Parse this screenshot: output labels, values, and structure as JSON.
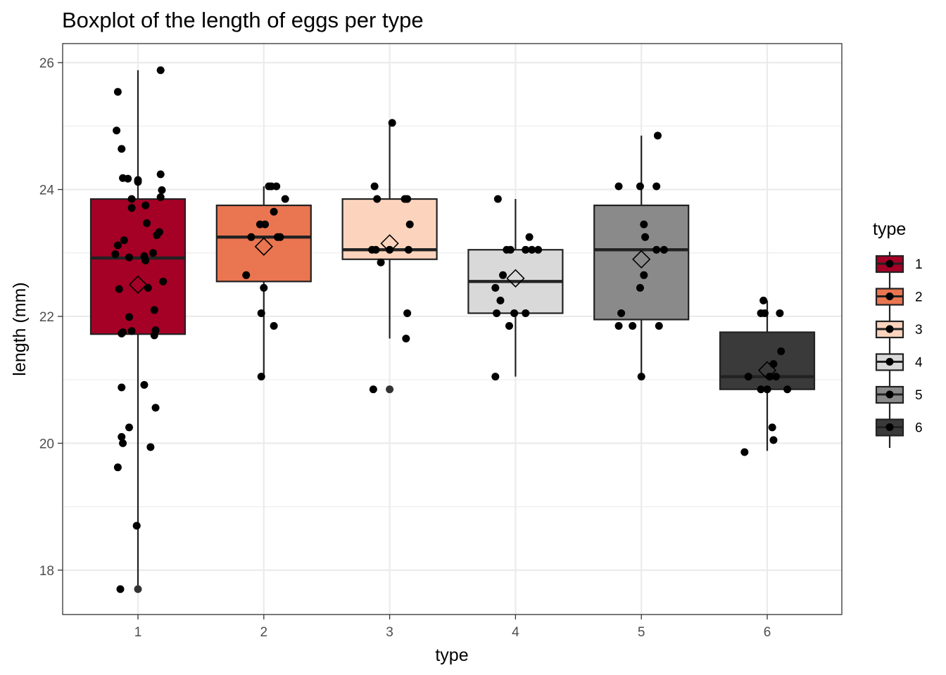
{
  "chart_data": {
    "type": "boxplot",
    "title": "Boxplot of the length of eggs per type",
    "xlabel": "type",
    "ylabel": "length (mm)",
    "ylim": [
      17.3,
      26.3
    ],
    "yticks": [
      18,
      20,
      22,
      24,
      26
    ],
    "grid": true,
    "legend": {
      "title": "type",
      "placement": "right",
      "labels": [
        "1",
        "2",
        "3",
        "4",
        "5",
        "6"
      ]
    },
    "categories": [
      "1",
      "2",
      "3",
      "4",
      "5",
      "6"
    ],
    "boxes": [
      {
        "category": "1",
        "color": "#a50026",
        "whisker_low": 17.7,
        "q1": 21.72,
        "median": 22.92,
        "q3": 23.85,
        "whisker_high": 25.88,
        "mean": 22.5
      },
      {
        "category": "2",
        "color": "#ea7651",
        "whisker_low": 21.05,
        "q1": 22.55,
        "median": 23.25,
        "q3": 23.75,
        "whisker_high": 24.05,
        "mean": 23.1
      },
      {
        "category": "3",
        "color": "#fcd4bd",
        "whisker_low": 21.65,
        "q1": 22.9,
        "median": 23.05,
        "q3": 23.85,
        "whisker_high": 25.05,
        "mean": 23.15
      },
      {
        "category": "4",
        "color": "#d9d9d9",
        "whisker_low": 21.05,
        "q1": 22.05,
        "median": 22.55,
        "q3": 23.05,
        "whisker_high": 23.85,
        "mean": 22.6
      },
      {
        "category": "5",
        "color": "#8a8a8a",
        "whisker_low": 21.05,
        "q1": 21.95,
        "median": 23.05,
        "q3": 23.75,
        "whisker_high": 24.85,
        "mean": 22.9
      },
      {
        "category": "6",
        "color": "#3a3a3a",
        "whisker_low": 19.88,
        "q1": 20.85,
        "median": 21.05,
        "q3": 21.75,
        "whisker_high": 22.25,
        "mean": 21.15
      }
    ],
    "outliers": [
      {
        "category": "1",
        "y": 17.7
      },
      {
        "category": "3",
        "y": 20.85
      }
    ],
    "points": [
      {
        "x": 0.86,
        "y": 17.7
      },
      {
        "x": 0.99,
        "y": 18.7
      },
      {
        "x": 0.84,
        "y": 19.62
      },
      {
        "x": 0.88,
        "y": 20.0
      },
      {
        "x": 0.87,
        "y": 20.1
      },
      {
        "x": 0.93,
        "y": 20.25
      },
      {
        "x": 1.1,
        "y": 19.94
      },
      {
        "x": 1.14,
        "y": 20.56
      },
      {
        "x": 1.05,
        "y": 20.92
      },
      {
        "x": 0.87,
        "y": 20.88
      },
      {
        "x": 0.87,
        "y": 21.73
      },
      {
        "x": 0.88,
        "y": 21.75
      },
      {
        "x": 0.95,
        "y": 21.77
      },
      {
        "x": 1.13,
        "y": 21.7
      },
      {
        "x": 1.14,
        "y": 21.78
      },
      {
        "x": 0.93,
        "y": 21.99
      },
      {
        "x": 1.13,
        "y": 22.1
      },
      {
        "x": 0.85,
        "y": 22.43
      },
      {
        "x": 1.08,
        "y": 22.45
      },
      {
        "x": 1.2,
        "y": 22.55
      },
      {
        "x": 1.06,
        "y": 22.88
      },
      {
        "x": 0.93,
        "y": 22.93
      },
      {
        "x": 1.05,
        "y": 22.95
      },
      {
        "x": 1.12,
        "y": 23.0
      },
      {
        "x": 0.82,
        "y": 22.98
      },
      {
        "x": 0.84,
        "y": 23.12
      },
      {
        "x": 0.89,
        "y": 23.2
      },
      {
        "x": 1.15,
        "y": 23.28
      },
      {
        "x": 1.17,
        "y": 23.33
      },
      {
        "x": 1.07,
        "y": 23.47
      },
      {
        "x": 0.95,
        "y": 23.71
      },
      {
        "x": 1.06,
        "y": 23.75
      },
      {
        "x": 0.95,
        "y": 23.85
      },
      {
        "x": 1.18,
        "y": 23.88
      },
      {
        "x": 1.19,
        "y": 23.99
      },
      {
        "x": 0.88,
        "y": 24.18
      },
      {
        "x": 0.92,
        "y": 24.17
      },
      {
        "x": 1.0,
        "y": 24.12
      },
      {
        "x": 1.0,
        "y": 24.15
      },
      {
        "x": 1.18,
        "y": 24.24
      },
      {
        "x": 0.87,
        "y": 24.64
      },
      {
        "x": 0.83,
        "y": 24.93
      },
      {
        "x": 0.84,
        "y": 25.54
      },
      {
        "x": 1.18,
        "y": 25.88
      },
      {
        "x": 1.98,
        "y": 21.05
      },
      {
        "x": 2.08,
        "y": 21.85
      },
      {
        "x": 1.98,
        "y": 22.05
      },
      {
        "x": 2.0,
        "y": 22.45
      },
      {
        "x": 1.86,
        "y": 22.65
      },
      {
        "x": 1.9,
        "y": 23.25
      },
      {
        "x": 2.11,
        "y": 23.25
      },
      {
        "x": 2.13,
        "y": 23.25
      },
      {
        "x": 1.97,
        "y": 23.45
      },
      {
        "x": 2.01,
        "y": 23.45
      },
      {
        "x": 2.08,
        "y": 23.65
      },
      {
        "x": 2.17,
        "y": 23.85
      },
      {
        "x": 2.04,
        "y": 24.05
      },
      {
        "x": 2.06,
        "y": 24.05
      },
      {
        "x": 2.1,
        "y": 24.05
      },
      {
        "x": 2.87,
        "y": 20.85
      },
      {
        "x": 3.13,
        "y": 21.65
      },
      {
        "x": 3.14,
        "y": 22.05
      },
      {
        "x": 2.93,
        "y": 22.85
      },
      {
        "x": 2.86,
        "y": 23.05
      },
      {
        "x": 2.89,
        "y": 23.05
      },
      {
        "x": 3.0,
        "y": 23.05
      },
      {
        "x": 3.15,
        "y": 23.05
      },
      {
        "x": 3.16,
        "y": 23.45
      },
      {
        "x": 2.9,
        "y": 23.85
      },
      {
        "x": 3.12,
        "y": 23.85
      },
      {
        "x": 3.14,
        "y": 23.85
      },
      {
        "x": 2.88,
        "y": 24.05
      },
      {
        "x": 3.02,
        "y": 25.05
      },
      {
        "x": 3.84,
        "y": 21.05
      },
      {
        "x": 3.95,
        "y": 21.85
      },
      {
        "x": 3.85,
        "y": 22.05
      },
      {
        "x": 3.99,
        "y": 22.05
      },
      {
        "x": 4.08,
        "y": 22.05
      },
      {
        "x": 3.88,
        "y": 22.25
      },
      {
        "x": 3.84,
        "y": 22.45
      },
      {
        "x": 3.9,
        "y": 22.65
      },
      {
        "x": 3.93,
        "y": 23.05
      },
      {
        "x": 3.96,
        "y": 23.05
      },
      {
        "x": 4.08,
        "y": 23.05
      },
      {
        "x": 4.13,
        "y": 23.05
      },
      {
        "x": 4.18,
        "y": 23.05
      },
      {
        "x": 4.11,
        "y": 23.25
      },
      {
        "x": 3.86,
        "y": 23.85
      },
      {
        "x": 5.0,
        "y": 21.05
      },
      {
        "x": 4.82,
        "y": 21.85
      },
      {
        "x": 4.93,
        "y": 21.85
      },
      {
        "x": 5.14,
        "y": 21.85
      },
      {
        "x": 4.84,
        "y": 22.05
      },
      {
        "x": 4.99,
        "y": 22.45
      },
      {
        "x": 5.02,
        "y": 22.65
      },
      {
        "x": 5.12,
        "y": 23.05
      },
      {
        "x": 5.18,
        "y": 23.05
      },
      {
        "x": 5.03,
        "y": 23.25
      },
      {
        "x": 5.02,
        "y": 23.45
      },
      {
        "x": 4.82,
        "y": 24.05
      },
      {
        "x": 4.99,
        "y": 24.05
      },
      {
        "x": 5.12,
        "y": 24.05
      },
      {
        "x": 5.13,
        "y": 24.85
      },
      {
        "x": 5.82,
        "y": 19.86
      },
      {
        "x": 6.05,
        "y": 20.05
      },
      {
        "x": 6.04,
        "y": 20.25
      },
      {
        "x": 5.95,
        "y": 20.85
      },
      {
        "x": 6.0,
        "y": 20.85
      },
      {
        "x": 6.16,
        "y": 20.85
      },
      {
        "x": 5.85,
        "y": 21.05
      },
      {
        "x": 6.02,
        "y": 21.05
      },
      {
        "x": 6.07,
        "y": 21.05
      },
      {
        "x": 6.05,
        "y": 21.25
      },
      {
        "x": 6.11,
        "y": 21.45
      },
      {
        "x": 5.95,
        "y": 22.05
      },
      {
        "x": 5.98,
        "y": 22.05
      },
      {
        "x": 6.1,
        "y": 22.05
      },
      {
        "x": 5.97,
        "y": 22.25
      }
    ]
  }
}
